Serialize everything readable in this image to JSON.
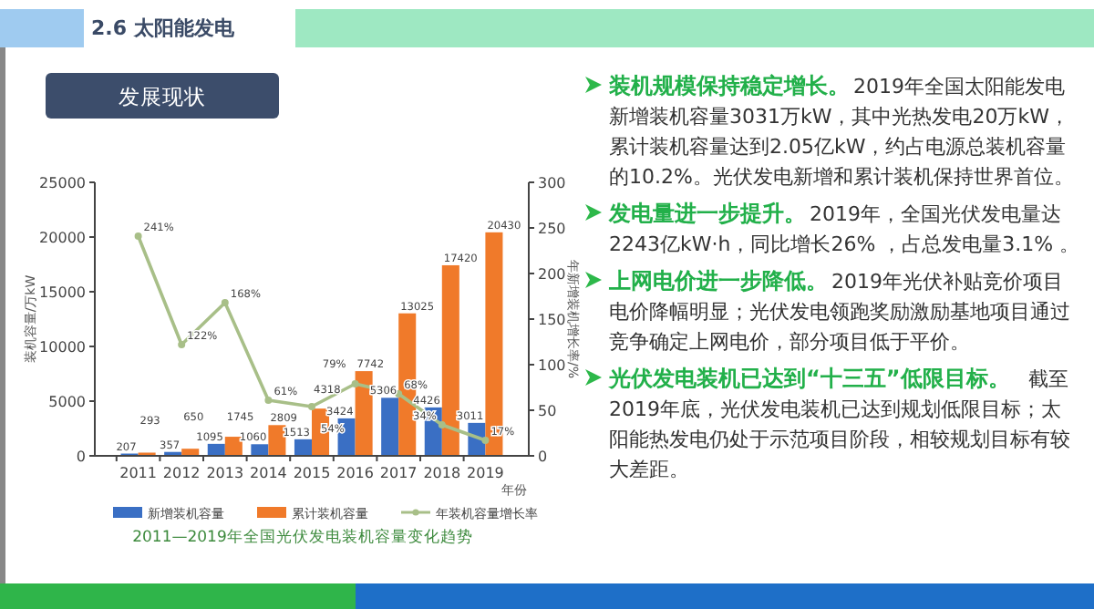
{
  "chart_data": {
    "type": "bar",
    "title": "2011—2019年全国光伏发电装机容量变化趋势",
    "xlabel": "年份",
    "ylabel": "装机容量/万kW",
    "y2label": "年新增装机增长率/%",
    "categories": [
      "2011",
      "2012",
      "2013",
      "2014",
      "2015",
      "2016",
      "2017",
      "2018",
      "2019"
    ],
    "series": [
      {
        "name": "新增装机容量",
        "color": "#3a6fc4",
        "values": [
          207,
          357,
          1095,
          1060,
          1513,
          3424,
          5306,
          4426,
          3011
        ],
        "value_labels": [
          "207",
          "357",
          "1095",
          "1060",
          "1513",
          "3424",
          "5306",
          "4426",
          "3011"
        ]
      },
      {
        "name": "累计装机容量",
        "color": "#f07a2a",
        "values": [
          293,
          650,
          1745,
          2809,
          4318,
          7742,
          13025,
          17420,
          20430
        ],
        "value_labels": [
          "293",
          "650",
          "1745",
          "2809",
          "4318",
          "7742",
          "13025",
          "17420",
          "20430"
        ]
      },
      {
        "name": "年装机容量增长率",
        "type": "line",
        "axis": "y2",
        "color": "#a8bf88",
        "marker": "circle",
        "values": [
          241,
          122,
          168,
          61,
          54,
          79,
          68,
          34,
          17
        ],
        "value_labels": [
          "241%",
          "122%",
          "168%",
          "61%",
          "54%",
          "79%",
          "68%",
          "34%",
          "17%"
        ]
      }
    ],
    "ylim": [
      0,
      25000
    ],
    "yticks": [
      0,
      5000,
      10000,
      15000,
      20000,
      25000
    ],
    "y2lim": [
      0,
      300
    ],
    "y2ticks": [
      0,
      50,
      100,
      150,
      200,
      250,
      300
    ],
    "grid": false,
    "legend": "bottom",
    "annotations": [
      "2.6 太阳能发电",
      "发展现状",
      "装机规模保持稳定增长。",
      "2019年全国太阳能发电新增装机容量3031万kW，其中光热发电20万kW，累计装机容量达到2.05亿kW，约占电源总装机容量的10.2%。光伏发电新增和累计装机保持世界首位。",
      "发电量进一步提升。",
      "2019年，全国光伏发电量达2243亿kW·h，同比增长26% ，占总发电量3.1% 。",
      "上网电价进一步降低。",
      "2019年光伏补贴竞价项目电价降幅明显；光伏发电领跑奖励激励基地项目通过竞争确定上网电价，部分项目低于平价。",
      "光伏发电装机已达到“十三五”低限目标。",
      "截至2019年底，光伏发电装机已达到规划低限目标；太阳能热发电仍处于示范项目阶段，相较规划目标有较大差距。"
    ]
  }
}
